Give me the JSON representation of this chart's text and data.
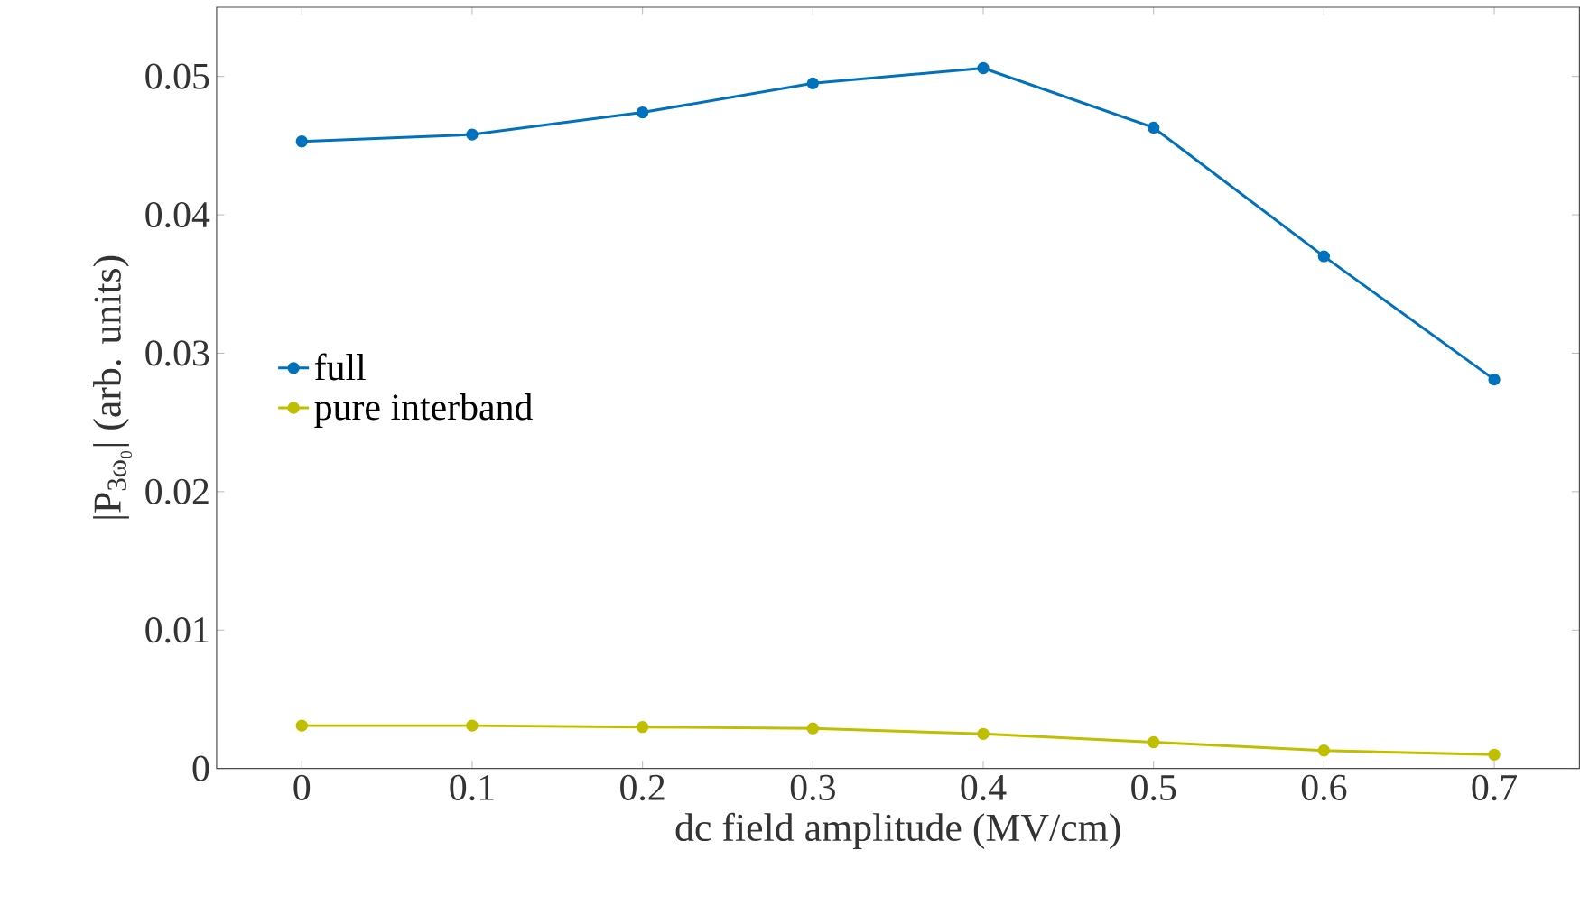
{
  "chart_data": {
    "type": "line",
    "xlabel": "dc field amplitude (MV/cm)",
    "ylabel": "|P$_{3ω₀}$| (arb. units)",
    "x": [
      0,
      0.1,
      0.2,
      0.3,
      0.4,
      0.5,
      0.6,
      0.7
    ],
    "series": [
      {
        "name": "full",
        "color": "#0072bd",
        "values": [
          0.0453,
          0.0458,
          0.0474,
          0.0495,
          0.0506,
          0.0463,
          0.037,
          0.0281
        ]
      },
      {
        "name": "pure interband",
        "color": "#bfbf00",
        "values": [
          0.0031,
          0.0031,
          0.003,
          0.0029,
          0.0025,
          0.0019,
          0.0013,
          0.001
        ]
      }
    ],
    "xlim": [
      -0.05,
      0.75
    ],
    "ylim": [
      0,
      0.055
    ],
    "xticks": [
      0,
      0.1,
      0.2,
      0.3,
      0.4,
      0.5,
      0.6,
      0.7
    ],
    "yticks": [
      0,
      0.01,
      0.02,
      0.03,
      0.04,
      0.05
    ],
    "legend": "left",
    "marker": "circle",
    "line_style": "solid",
    "grid": false
  }
}
